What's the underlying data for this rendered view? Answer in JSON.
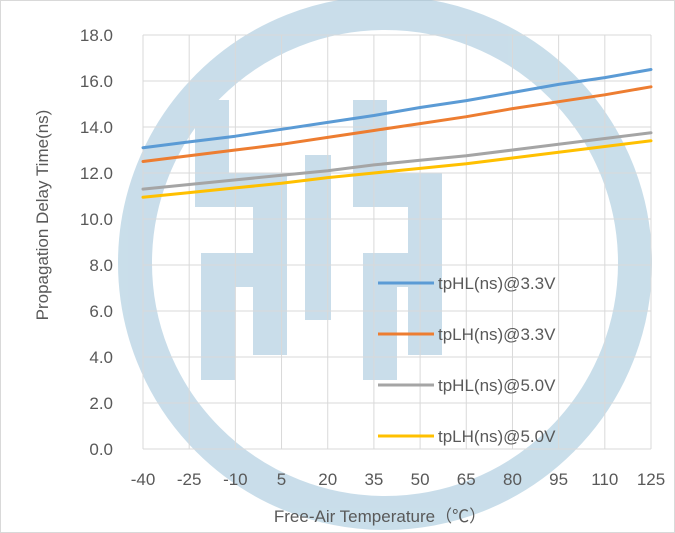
{
  "chart_data": {
    "type": "line",
    "title": "",
    "xlabel": "Free-Air Temperature（℃）",
    "ylabel": "Propagation Delay Time(ns)",
    "categories": [
      "-40",
      "-25",
      "-10",
      "5",
      "20",
      "35",
      "50",
      "65",
      "80",
      "95",
      "110",
      "125"
    ],
    "ylim": [
      0,
      18
    ],
    "yticks": [
      "0.0",
      "2.0",
      "4.0",
      "6.0",
      "8.0",
      "10.0",
      "12.0",
      "14.0",
      "16.0",
      "18.0"
    ],
    "grid": true,
    "legend_position": "lower-right",
    "series": [
      {
        "name": "tpHL(ns)@3.3V",
        "color": "#5B9BD5",
        "values": [
          13.1,
          13.35,
          13.6,
          13.9,
          14.2,
          14.5,
          14.85,
          15.15,
          15.5,
          15.85,
          16.15,
          16.5
        ]
      },
      {
        "name": "tpLH(ns)@3.3V",
        "color": "#ED7D31",
        "values": [
          12.5,
          12.75,
          13.0,
          13.25,
          13.55,
          13.85,
          14.15,
          14.45,
          14.8,
          15.1,
          15.4,
          15.75
        ]
      },
      {
        "name": "tpHL(ns)@5.0V",
        "color": "#A5A5A5",
        "values": [
          11.3,
          11.5,
          11.7,
          11.9,
          12.1,
          12.35,
          12.55,
          12.75,
          13.0,
          13.25,
          13.5,
          13.75
        ]
      },
      {
        "name": "tpLH(ns)@5.0V",
        "color": "#FFC000",
        "values": [
          10.95,
          11.15,
          11.35,
          11.55,
          11.8,
          12.0,
          12.2,
          12.4,
          12.65,
          12.9,
          13.15,
          13.4
        ]
      }
    ]
  },
  "watermark": {
    "name": "logo-watermark",
    "color": "#9DC3D9"
  }
}
